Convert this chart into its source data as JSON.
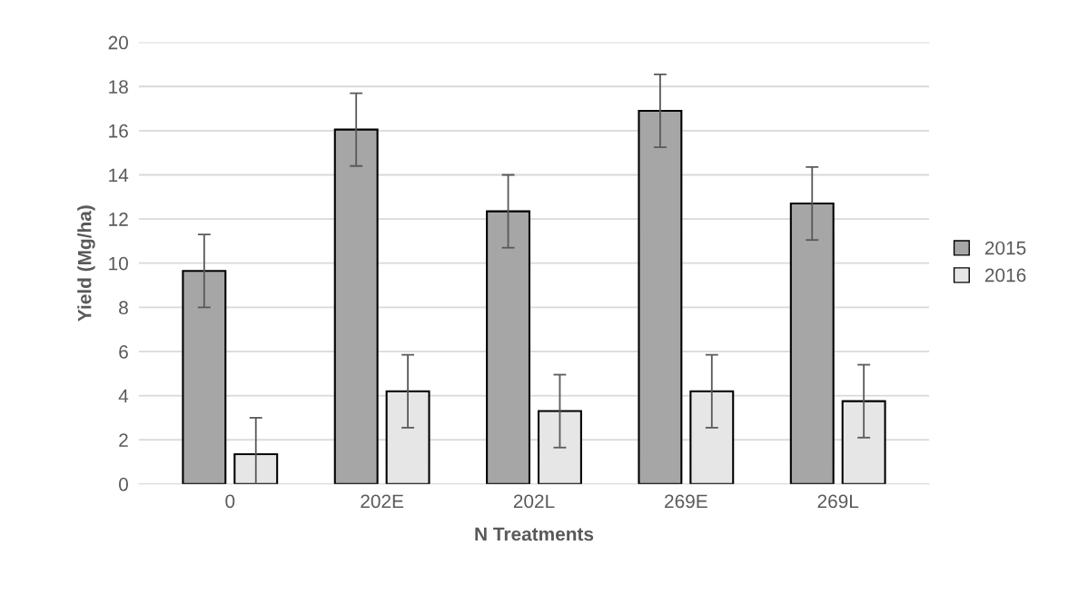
{
  "chart_data": {
    "type": "bar",
    "xlabel": "N Treatments",
    "ylabel": "Yield (Mg/ha)",
    "categories": [
      "0",
      "202E",
      "202L",
      "269E",
      "269L"
    ],
    "series": [
      {
        "name": "2015",
        "color": "#a6a6a6",
        "values": [
          9.65,
          16.05,
          12.35,
          16.9,
          12.7
        ],
        "errors": [
          1.65,
          1.65,
          1.65,
          1.65,
          1.65
        ]
      },
      {
        "name": "2016",
        "color": "#e7e6e6",
        "values": [
          1.35,
          4.2,
          3.3,
          4.2,
          3.75
        ],
        "errors": [
          1.65,
          1.65,
          1.65,
          1.65,
          1.65
        ]
      }
    ],
    "ylim": [
      0,
      20
    ],
    "yticks": [
      0,
      2,
      4,
      6,
      8,
      10,
      12,
      14,
      16,
      18,
      20
    ],
    "grid": "y",
    "legend": "right"
  }
}
